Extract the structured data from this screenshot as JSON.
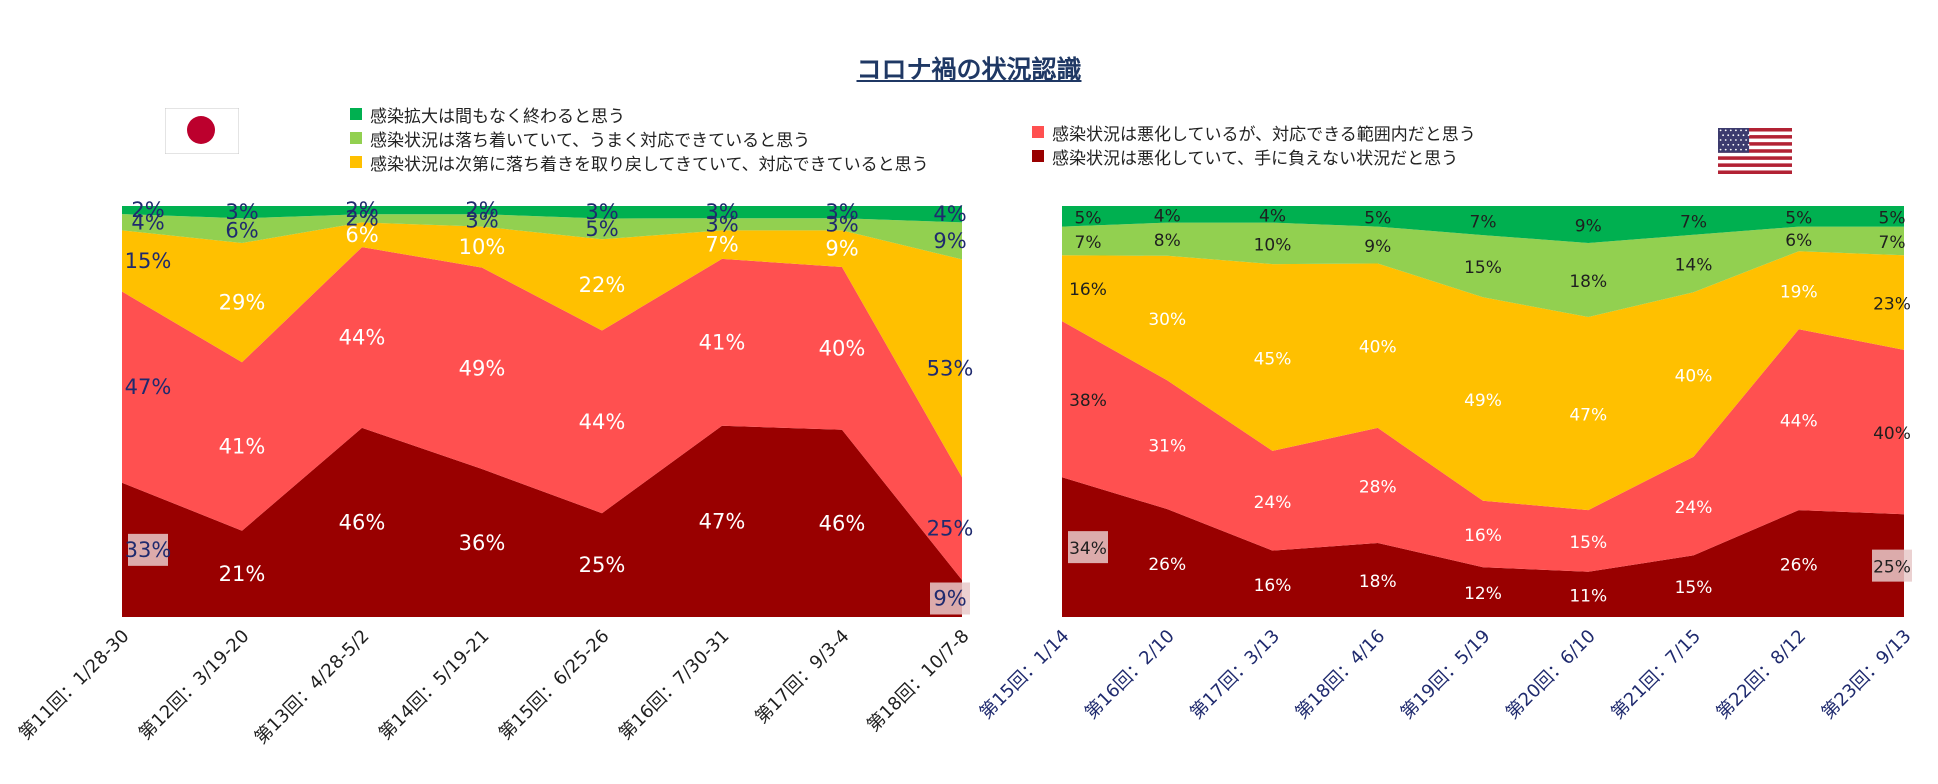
{
  "title": "コロナ禍の状況認識",
  "colors": {
    "series0": "#00B050",
    "series1": "#92D050",
    "series2": "#FFC000",
    "series3": "#FF5050",
    "series4": "#990000",
    "flag_jp_red": "#BC002D",
    "flag_us_red": "#B22234",
    "flag_us_blue": "#3C3B6E",
    "title": "#1F3864"
  },
  "legend_left": [
    {
      "label": "感染拡大は間もなく終わると思う",
      "color": "#00B050"
    },
    {
      "label": "感染状況は落ち着いていて、うまく対応できていると思う",
      "color": "#92D050"
    },
    {
      "label": "感染状況は次第に落ち着きを取り戻してきていて、対応できていると思う",
      "color": "#FFC000"
    }
  ],
  "legend_right": [
    {
      "label": "感染状況は悪化しているが、対応できる範囲内だと思う",
      "color": "#FF5050"
    },
    {
      "label": "感染状況は悪化していて、手に負えない状況だと思う",
      "color": "#990000"
    }
  ],
  "flags": {
    "left": "japan-flag",
    "right": "usa-flag"
  },
  "chart_data": [
    {
      "type": "area",
      "stacked": true,
      "percent": true,
      "title": "",
      "categories": [
        "第11回：1/28-30",
        "第12回：3/19-20",
        "第13回：4/28-5/2",
        "第14回：5/19-21",
        "第15回：6/25-26",
        "第16回：7/30-31",
        "第17回：9/3-4",
        "第18回：10/7-8"
      ],
      "series": [
        {
          "name": "感染状況は悪化していて、手に負えない状況だと思う",
          "values": [
            33,
            21,
            46,
            36,
            25,
            47,
            46,
            9
          ]
        },
        {
          "name": "感染状況は悪化しているが、対応できる範囲内だと思う",
          "values": [
            47,
            41,
            44,
            49,
            44,
            41,
            40,
            25
          ]
        },
        {
          "name": "感染状況は次第に落ち着きを取り戻してきていて、対応できていると思う",
          "values": [
            15,
            29,
            6,
            10,
            22,
            7,
            9,
            53
          ]
        },
        {
          "name": "感染状況は落ち着いていて、うまく対応できていると思う",
          "values": [
            4,
            6,
            2,
            3,
            5,
            3,
            3,
            9
          ]
        },
        {
          "name": "感染拡大は間もなく終わると思う",
          "values": [
            2,
            3,
            2,
            2,
            3,
            3,
            3,
            4
          ]
        }
      ],
      "labels": [
        [
          "33%",
          "21%",
          "46%",
          "36%",
          "25%",
          "47%",
          "46%",
          "9%"
        ],
        [
          "47%",
          "41%",
          "44%",
          "49%",
          "44%",
          "41%",
          "40%",
          "25%"
        ],
        [
          "15%",
          "29%",
          "6%",
          "10%",
          "22%",
          "7%",
          "9%",
          "53%"
        ],
        [
          "4%",
          "6%",
          "2%",
          "3%",
          "5%",
          "3%",
          "3%",
          "9%"
        ],
        [
          "2%",
          "3%",
          "2%",
          "2%",
          "3%",
          "3%",
          "3%",
          "4%"
        ]
      ],
      "ylim": [
        0,
        100
      ]
    },
    {
      "type": "area",
      "stacked": true,
      "percent": true,
      "title": "",
      "categories": [
        "第15回：1/14",
        "第16回：2/10",
        "第17回：3/13",
        "第18回：4/16",
        "第19回：5/19",
        "第20回：6/10",
        "第21回：7/15",
        "第22回：8/12",
        "第23回：9/13"
      ],
      "series": [
        {
          "name": "感染状況は悪化していて、手に負えない状況だと思う",
          "values": [
            34,
            26,
            16,
            18,
            12,
            11,
            15,
            26,
            25
          ]
        },
        {
          "name": "感染状況は悪化しているが、対応できる範囲内だと思う",
          "values": [
            38,
            31,
            24,
            28,
            16,
            15,
            24,
            44,
            40
          ]
        },
        {
          "name": "感染状況は次第に落ち着きを取り戻してきていて、対応できていると思う",
          "values": [
            16,
            30,
            45,
            40,
            49,
            47,
            40,
            19,
            23
          ]
        },
        {
          "name": "感染状況は落ち着いていて、うまく対応できていると思う",
          "values": [
            7,
            8,
            10,
            9,
            15,
            18,
            14,
            6,
            7
          ]
        },
        {
          "name": "感染拡大は間もなく終わると思う",
          "values": [
            5,
            4,
            4,
            5,
            7,
            9,
            7,
            5,
            5
          ]
        }
      ],
      "labels": [
        [
          "34%",
          "26%",
          "16%",
          "18%",
          "12%",
          "11%",
          "15%",
          "26%",
          "25%"
        ],
        [
          "38%",
          "31%",
          "24%",
          "28%",
          "16%",
          "15%",
          "24%",
          "44%",
          "40%"
        ],
        [
          "16%",
          "30%",
          "45%",
          "40%",
          "49%",
          "47%",
          "40%",
          "19%",
          "23%"
        ],
        [
          "7%",
          "8%",
          "10%",
          "9%",
          "15%",
          "18%",
          "14%",
          "6%",
          "7%"
        ],
        [
          "5%",
          "4%",
          "4%",
          "5%",
          "7%",
          "9%",
          "7%",
          "5%",
          "5%"
        ]
      ],
      "ylim": [
        0,
        100
      ]
    }
  ]
}
